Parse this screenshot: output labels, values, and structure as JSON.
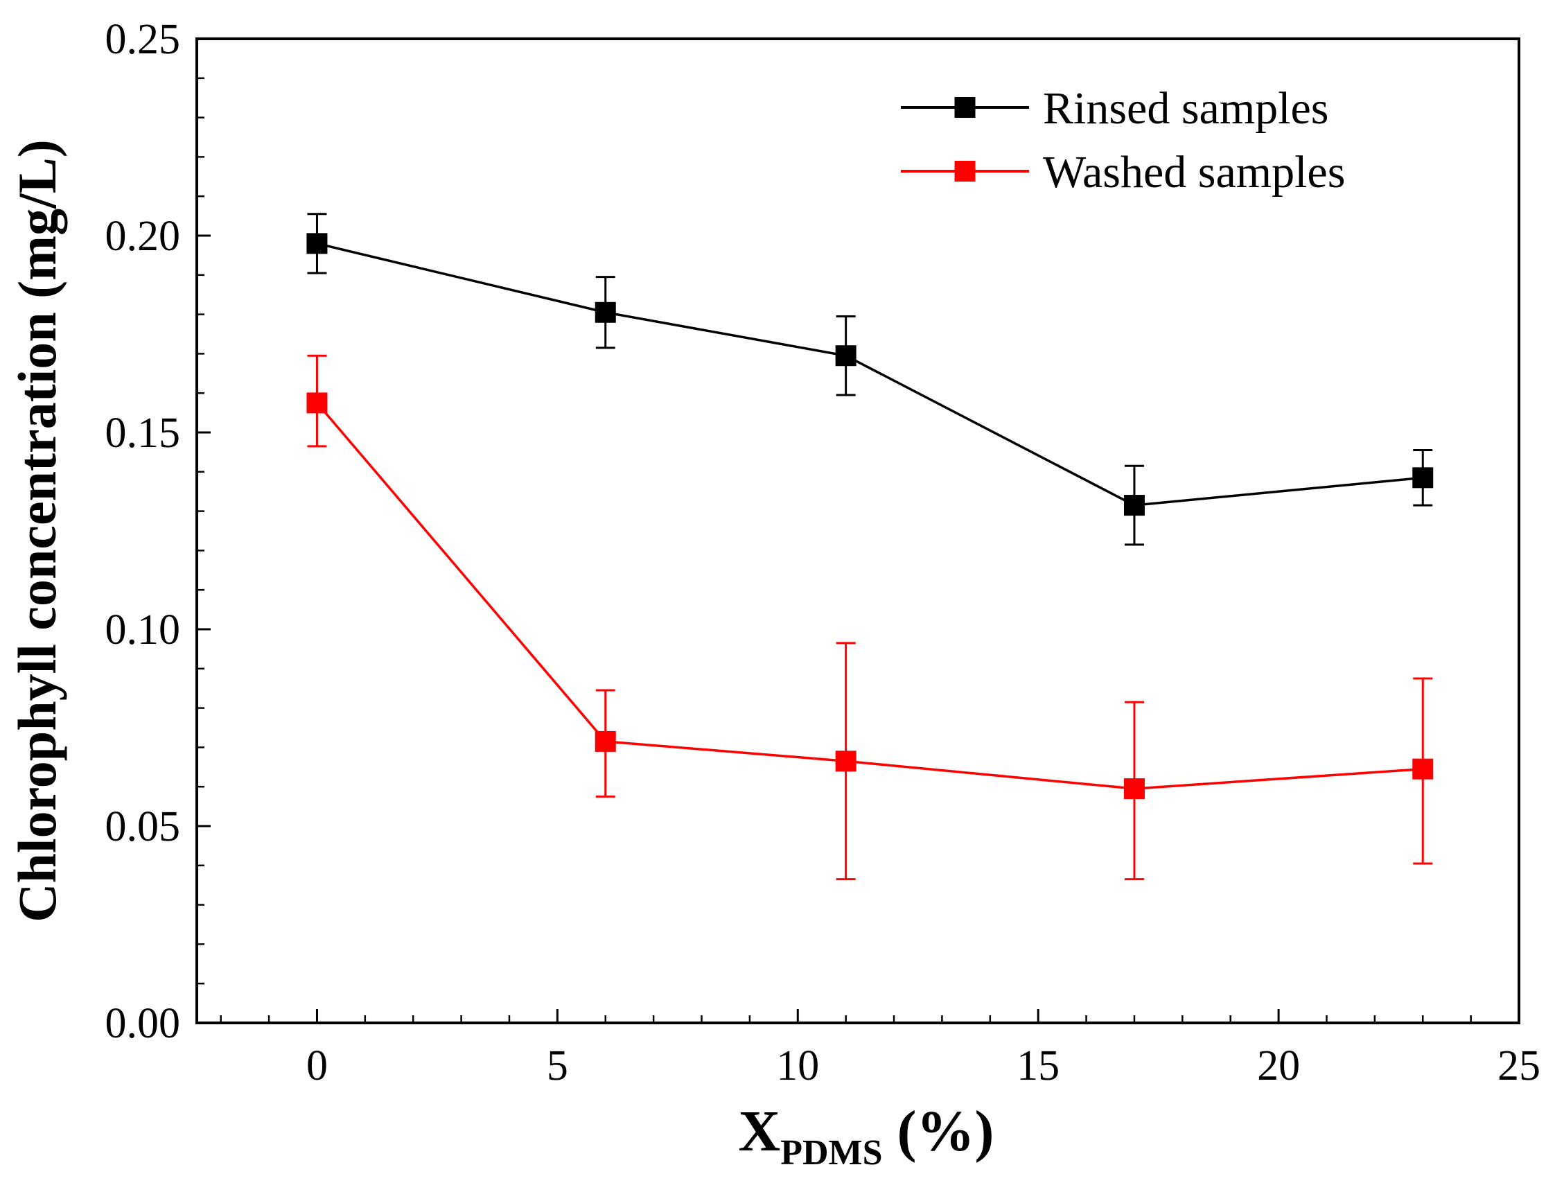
{
  "chart_data": {
    "type": "line",
    "xlabel": "X",
    "xlabel_subscript": "PDMS",
    "xlabel_unit": " (%)",
    "ylabel": "Chlorophyll concentration (mg/L)",
    "xlim": [
      -2.5,
      25
    ],
    "ylim": [
      0,
      0.25
    ],
    "x_ticks": [
      0,
      5,
      10,
      15,
      20,
      25
    ],
    "x_tick_labels": [
      "0",
      "5",
      "10",
      "15",
      "20",
      "25"
    ],
    "y_ticks": [
      0,
      0.05,
      0.1,
      0.15,
      0.2,
      0.25
    ],
    "y_tick_labels": [
      "0.00",
      "0.05",
      "0.10",
      "0.15",
      "0.20",
      "0.25"
    ],
    "legend_position": "top-right",
    "grid": false,
    "series": [
      {
        "name": "Rinsed samples",
        "color": "#000000",
        "marker": "square",
        "x": [
          0,
          6,
          11,
          17,
          23
        ],
        "y": [
          0.198,
          0.1805,
          0.1695,
          0.1315,
          0.1385
        ],
        "yerr_low": [
          0.1905,
          0.1715,
          0.1595,
          0.1215,
          0.1315
        ],
        "yerr_high": [
          0.2055,
          0.1895,
          0.1795,
          0.1415,
          0.1455
        ]
      },
      {
        "name": "Washed samples",
        "color": "#ff0000",
        "marker": "square",
        "x": [
          0,
          6,
          11,
          17,
          23
        ],
        "y": [
          0.1575,
          0.0715,
          0.0665,
          0.0595,
          0.0645
        ],
        "yerr_low": [
          0.1465,
          0.0575,
          0.0365,
          0.0365,
          0.0405
        ],
        "yerr_high": [
          0.1695,
          0.0845,
          0.0965,
          0.0815,
          0.0875
        ]
      }
    ]
  }
}
